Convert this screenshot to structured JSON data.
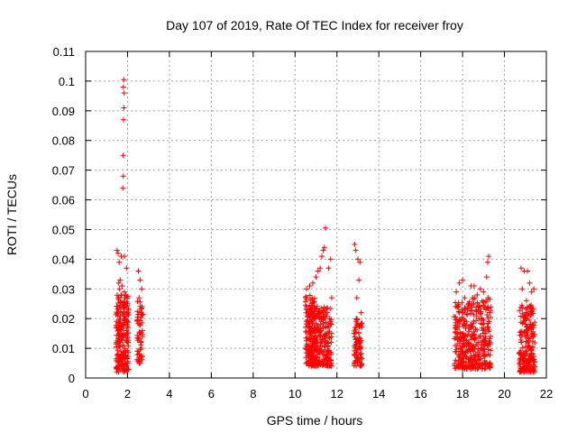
{
  "chart_data": {
    "type": "scatter",
    "title": "Day 107 of 2019, Rate Of TEC Index for receiver froy",
    "xlabel": "GPS time / hours",
    "ylabel": "ROTI / TECUs",
    "xlim": [
      0,
      22
    ],
    "ylim": [
      0,
      0.11
    ],
    "xticks": [
      0,
      2,
      4,
      6,
      8,
      10,
      12,
      14,
      16,
      18,
      20,
      22
    ],
    "yticks": [
      0,
      0.01,
      0.02,
      0.03,
      0.04,
      0.05,
      0.06,
      0.07,
      0.08,
      0.09,
      0.1,
      0.11
    ],
    "grid": true,
    "marker": "+",
    "marker_color": "#ff0000",
    "series": [
      {
        "name": "ROTI",
        "points": [
          [
            1.5,
            0.043
          ],
          [
            1.55,
            0.042
          ],
          [
            1.6,
            0.039
          ],
          [
            1.65,
            0.033
          ],
          [
            1.7,
            0.041
          ],
          [
            1.85,
            0.041
          ],
          [
            1.95,
            0.037
          ],
          [
            1.58,
            0.032
          ],
          [
            1.62,
            0.03
          ],
          [
            1.75,
            0.031
          ],
          [
            1.85,
            0.029
          ],
          [
            1.92,
            0.028
          ],
          [
            1.82,
            0.1005
          ],
          [
            1.8,
            0.098
          ],
          [
            1.84,
            0.096
          ],
          [
            1.83,
            0.091
          ],
          [
            1.81,
            0.087
          ],
          [
            1.79,
            0.075
          ],
          [
            1.8,
            0.068
          ],
          [
            1.78,
            0.064
          ],
          [
            2.52,
            0.036
          ],
          [
            2.6,
            0.033
          ],
          [
            2.68,
            0.03
          ],
          [
            2.55,
            0.027
          ],
          [
            2.65,
            0.022
          ],
          [
            2.58,
            0.018
          ],
          [
            2.62,
            0.012
          ],
          [
            2.56,
            0.008
          ],
          [
            2.6,
            0.005
          ],
          [
            10.55,
            0.03
          ],
          [
            10.7,
            0.031
          ],
          [
            10.85,
            0.032
          ],
          [
            11.0,
            0.034
          ],
          [
            11.1,
            0.036
          ],
          [
            11.2,
            0.037
          ],
          [
            11.35,
            0.043
          ],
          [
            11.4,
            0.044
          ],
          [
            11.28,
            0.041
          ],
          [
            11.45,
            0.0505
          ],
          [
            11.7,
            0.04
          ],
          [
            11.6,
            0.037
          ],
          [
            11.75,
            0.027
          ],
          [
            11.65,
            0.02
          ],
          [
            11.55,
            0.012
          ],
          [
            11.7,
            0.004
          ],
          [
            12.85,
            0.045
          ],
          [
            12.9,
            0.043
          ],
          [
            13.0,
            0.04
          ],
          [
            13.1,
            0.039
          ],
          [
            13.05,
            0.033
          ],
          [
            12.95,
            0.027
          ],
          [
            13.15,
            0.022
          ],
          [
            12.88,
            0.017
          ],
          [
            13.0,
            0.012
          ],
          [
            13.12,
            0.007
          ],
          [
            12.92,
            0.004
          ],
          [
            17.7,
            0.029
          ],
          [
            17.85,
            0.032
          ],
          [
            18.0,
            0.033
          ],
          [
            18.1,
            0.027
          ],
          [
            18.4,
            0.031
          ],
          [
            18.55,
            0.031
          ],
          [
            18.7,
            0.028
          ],
          [
            18.85,
            0.03
          ],
          [
            19.0,
            0.029
          ],
          [
            19.2,
            0.039
          ],
          [
            19.25,
            0.041
          ],
          [
            19.15,
            0.034
          ],
          [
            19.3,
            0.022
          ],
          [
            18.25,
            0.012
          ],
          [
            17.9,
            0.005
          ],
          [
            20.8,
            0.037
          ],
          [
            20.95,
            0.036
          ],
          [
            21.1,
            0.036
          ],
          [
            21.2,
            0.032
          ],
          [
            21.3,
            0.029
          ],
          [
            21.4,
            0.03
          ],
          [
            20.85,
            0.03
          ],
          [
            21.05,
            0.026
          ],
          [
            21.25,
            0.024
          ],
          [
            21.35,
            0.015
          ],
          [
            20.9,
            0.008
          ],
          [
            21.15,
            0.005
          ]
        ],
        "clusters": [
          {
            "x_range": [
              1.45,
              2.05
            ],
            "y_range": [
              0.002,
              0.028
            ],
            "n": 230
          },
          {
            "x_range": [
              2.45,
              2.75
            ],
            "y_range": [
              0.005,
              0.026
            ],
            "n": 55
          },
          {
            "x_range": [
              10.5,
              11.1
            ],
            "y_range": [
              0.004,
              0.028
            ],
            "n": 230
          },
          {
            "x_range": [
              11.1,
              11.75
            ],
            "y_range": [
              0.004,
              0.024
            ],
            "n": 150
          },
          {
            "x_range": [
              12.8,
              13.2
            ],
            "y_range": [
              0.004,
              0.02
            ],
            "n": 80
          },
          {
            "x_range": [
              17.6,
              18.3
            ],
            "y_range": [
              0.003,
              0.026
            ],
            "n": 160
          },
          {
            "x_range": [
              18.3,
              19.35
            ],
            "y_range": [
              0.003,
              0.028
            ],
            "n": 220
          },
          {
            "x_range": [
              20.7,
              21.45
            ],
            "y_range": [
              0.002,
              0.025
            ],
            "n": 200
          }
        ]
      }
    ]
  }
}
